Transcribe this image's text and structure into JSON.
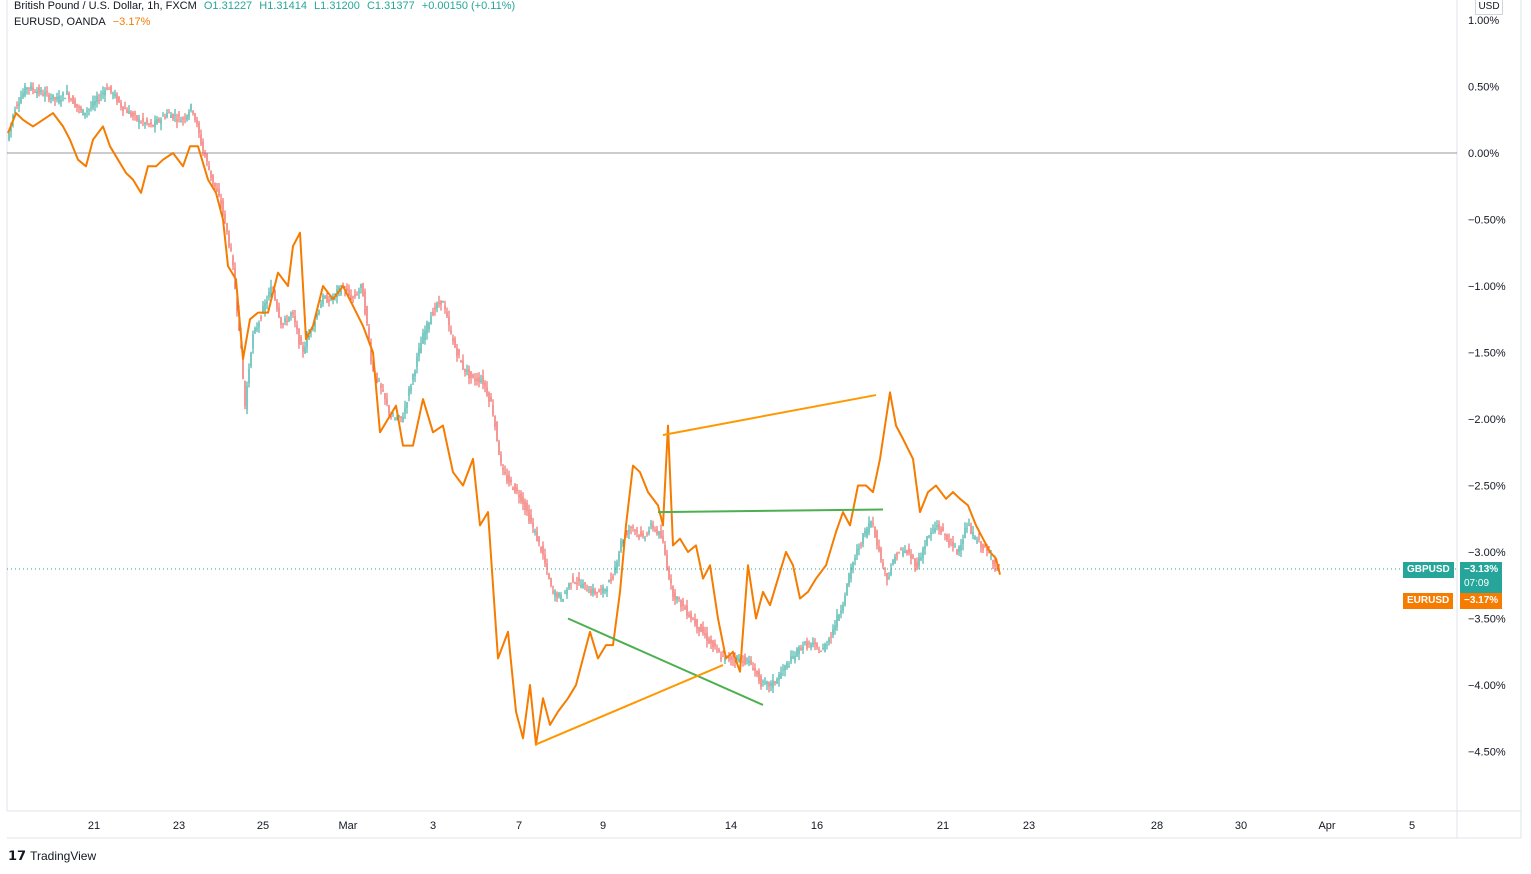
{
  "legend": {
    "main": {
      "symbol": "British Pound / U.S. Dollar, 1h, FXCM",
      "open": "O1.31227",
      "high": "H1.31414",
      "low": "L1.31200",
      "close": "C1.31377",
      "change": "+0.00150 (+0.11%)"
    },
    "compare": {
      "symbol": "EURUSD, OANDA",
      "change": "−3.17%"
    }
  },
  "axis_unit": "USD",
  "badges": {
    "gbpusd_label": "GBPUSD",
    "gbpusd_value": "−3.13%",
    "countdown": "07:09",
    "eurusd_label": "EURUSD",
    "eurusd_value": "−3.17%"
  },
  "brand": "TradingView",
  "colors": {
    "gbpusd_up": "#26a69a",
    "gbpusd_down": "#ef5350",
    "eurusd_line": "#f57c00",
    "trend_green": "#4caf50",
    "trend_orange": "#ff9800"
  },
  "chart_data": {
    "type": "line",
    "y_unit": "%",
    "ylim": [
      -5.0,
      1.1
    ],
    "y_ticks": [
      "1.00%",
      "0.50%",
      "0.00%",
      "−0.50%",
      "−1.00%",
      "−1.50%",
      "−2.00%",
      "−2.50%",
      "−3.00%",
      "−3.50%",
      "−4.00%",
      "−4.50%"
    ],
    "y_tick_values": [
      1.0,
      0.5,
      0.0,
      -0.5,
      -1.0,
      -1.5,
      -2.0,
      -2.5,
      -3.0,
      -3.5,
      -4.0,
      -4.5
    ],
    "x_ticks": [
      "21",
      "23",
      "25",
      "Mar",
      "3",
      "7",
      "9",
      "14",
      "16",
      "21",
      "23",
      "28",
      "30",
      "Apr",
      "5"
    ],
    "grid": false,
    "series": [
      {
        "name": "GBPUSD",
        "style": "candles",
        "last_value": -3.13,
        "values": [
          [
            0,
            0.1
          ],
          [
            8,
            0.35
          ],
          [
            20,
            0.5
          ],
          [
            35,
            0.45
          ],
          [
            50,
            0.4
          ],
          [
            60,
            0.45
          ],
          [
            75,
            0.3
          ],
          [
            85,
            0.35
          ],
          [
            100,
            0.5
          ],
          [
            115,
            0.35
          ],
          [
            130,
            0.25
          ],
          [
            145,
            0.2
          ],
          [
            160,
            0.3
          ],
          [
            175,
            0.25
          ],
          [
            185,
            0.35
          ],
          [
            195,
            0.05
          ],
          [
            205,
            -0.2
          ],
          [
            215,
            -0.4
          ],
          [
            225,
            -0.8
          ],
          [
            232,
            -1.3
          ],
          [
            238,
            -1.9
          ],
          [
            245,
            -1.4
          ],
          [
            255,
            -1.2
          ],
          [
            265,
            -1.0
          ],
          [
            275,
            -1.3
          ],
          [
            285,
            -1.2
          ],
          [
            295,
            -1.5
          ],
          [
            305,
            -1.3
          ],
          [
            315,
            -1.1
          ],
          [
            325,
            -1.1
          ],
          [
            335,
            -1.0
          ],
          [
            345,
            -1.1
          ],
          [
            355,
            -1.0
          ],
          [
            365,
            -1.6
          ],
          [
            375,
            -1.8
          ],
          [
            385,
            -2.0
          ],
          [
            395,
            -2.0
          ],
          [
            405,
            -1.7
          ],
          [
            415,
            -1.4
          ],
          [
            425,
            -1.2
          ],
          [
            435,
            -1.1
          ],
          [
            445,
            -1.4
          ],
          [
            455,
            -1.6
          ],
          [
            465,
            -1.7
          ],
          [
            475,
            -1.7
          ],
          [
            485,
            -1.9
          ],
          [
            495,
            -2.4
          ],
          [
            505,
            -2.5
          ],
          [
            515,
            -2.6
          ],
          [
            525,
            -2.8
          ],
          [
            535,
            -3.0
          ],
          [
            545,
            -3.3
          ],
          [
            555,
            -3.35
          ],
          [
            565,
            -3.2
          ],
          [
            575,
            -3.25
          ],
          [
            585,
            -3.3
          ],
          [
            595,
            -3.3
          ],
          [
            605,
            -3.2
          ],
          [
            615,
            -2.9
          ],
          [
            625,
            -2.8
          ],
          [
            635,
            -2.9
          ],
          [
            645,
            -2.8
          ],
          [
            655,
            -2.9
          ],
          [
            665,
            -3.3
          ],
          [
            675,
            -3.4
          ],
          [
            685,
            -3.5
          ],
          [
            695,
            -3.6
          ],
          [
            705,
            -3.7
          ],
          [
            715,
            -3.8
          ],
          [
            725,
            -3.8
          ],
          [
            735,
            -3.8
          ],
          [
            745,
            -3.85
          ],
          [
            755,
            -4.0
          ],
          [
            765,
            -4.0
          ],
          [
            775,
            -3.9
          ],
          [
            785,
            -3.8
          ],
          [
            795,
            -3.7
          ],
          [
            805,
            -3.7
          ],
          [
            815,
            -3.75
          ],
          [
            825,
            -3.6
          ],
          [
            835,
            -3.4
          ],
          [
            845,
            -3.1
          ],
          [
            855,
            -2.9
          ],
          [
            865,
            -2.75
          ],
          [
            872,
            -3.0
          ],
          [
            880,
            -3.2
          ],
          [
            890,
            -3.0
          ],
          [
            900,
            -3.0
          ],
          [
            910,
            -3.1
          ],
          [
            920,
            -2.9
          ],
          [
            930,
            -2.8
          ],
          [
            940,
            -2.9
          ],
          [
            950,
            -3.0
          ],
          [
            960,
            -2.8
          ],
          [
            968,
            -2.9
          ],
          [
            975,
            -2.95
          ],
          [
            985,
            -3.05
          ],
          [
            992,
            -3.13
          ]
        ]
      },
      {
        "name": "EURUSD",
        "style": "line",
        "last_value": -3.17,
        "values": [
          [
            0,
            0.15
          ],
          [
            8,
            0.3
          ],
          [
            15,
            0.25
          ],
          [
            25,
            0.2
          ],
          [
            35,
            0.25
          ],
          [
            45,
            0.3
          ],
          [
            55,
            0.2
          ],
          [
            62,
            0.1
          ],
          [
            70,
            -0.05
          ],
          [
            78,
            -0.1
          ],
          [
            85,
            0.1
          ],
          [
            95,
            0.2
          ],
          [
            102,
            0.05
          ],
          [
            110,
            -0.05
          ],
          [
            118,
            -0.15
          ],
          [
            125,
            -0.2
          ],
          [
            133,
            -0.3
          ],
          [
            140,
            -0.1
          ],
          [
            148,
            -0.1
          ],
          [
            155,
            -0.05
          ],
          [
            165,
            0.0
          ],
          [
            175,
            -0.1
          ],
          [
            182,
            0.05
          ],
          [
            190,
            0.05
          ],
          [
            200,
            -0.2
          ],
          [
            208,
            -0.3
          ],
          [
            215,
            -0.5
          ],
          [
            220,
            -0.85
          ],
          [
            228,
            -0.95
          ],
          [
            235,
            -1.55
          ],
          [
            242,
            -1.25
          ],
          [
            250,
            -1.2
          ],
          [
            260,
            -1.2
          ],
          [
            270,
            -0.9
          ],
          [
            280,
            -1.0
          ],
          [
            285,
            -0.7
          ],
          [
            292,
            -0.6
          ],
          [
            298,
            -1.4
          ],
          [
            305,
            -1.3
          ],
          [
            315,
            -1.0
          ],
          [
            325,
            -1.1
          ],
          [
            335,
            -1.0
          ],
          [
            345,
            -1.15
          ],
          [
            355,
            -1.3
          ],
          [
            365,
            -1.5
          ],
          [
            372,
            -2.1
          ],
          [
            380,
            -2.0
          ],
          [
            388,
            -1.9
          ],
          [
            395,
            -2.2
          ],
          [
            405,
            -2.2
          ],
          [
            415,
            -1.85
          ],
          [
            425,
            -2.1
          ],
          [
            435,
            -2.05
          ],
          [
            445,
            -2.4
          ],
          [
            455,
            -2.5
          ],
          [
            465,
            -2.3
          ],
          [
            472,
            -2.8
          ],
          [
            480,
            -2.7
          ],
          [
            490,
            -3.8
          ],
          [
            500,
            -3.6
          ],
          [
            508,
            -4.2
          ],
          [
            515,
            -4.4
          ],
          [
            522,
            -4.0
          ],
          [
            528,
            -4.45
          ],
          [
            535,
            -4.1
          ],
          [
            542,
            -4.3
          ],
          [
            550,
            -4.2
          ],
          [
            560,
            -4.1
          ],
          [
            568,
            -4.0
          ],
          [
            575,
            -3.8
          ],
          [
            582,
            -3.6
          ],
          [
            590,
            -3.8
          ],
          [
            598,
            -3.7
          ],
          [
            605,
            -3.7
          ],
          [
            612,
            -3.3
          ],
          [
            618,
            -2.8
          ],
          [
            625,
            -2.35
          ],
          [
            632,
            -2.4
          ],
          [
            640,
            -2.55
          ],
          [
            650,
            -2.65
          ],
          [
            655,
            -2.8
          ],
          [
            660,
            -2.05
          ],
          [
            665,
            -2.95
          ],
          [
            672,
            -2.9
          ],
          [
            680,
            -3.0
          ],
          [
            688,
            -2.95
          ],
          [
            695,
            -3.2
          ],
          [
            702,
            -3.1
          ],
          [
            710,
            -3.5
          ],
          [
            718,
            -3.8
          ],
          [
            725,
            -3.75
          ],
          [
            732,
            -3.9
          ],
          [
            740,
            -3.1
          ],
          [
            748,
            -3.5
          ],
          [
            755,
            -3.3
          ],
          [
            762,
            -3.4
          ],
          [
            770,
            -3.2
          ],
          [
            778,
            -3.0
          ],
          [
            785,
            -3.1
          ],
          [
            792,
            -3.35
          ],
          [
            800,
            -3.3
          ],
          [
            808,
            -3.2
          ],
          [
            818,
            -3.1
          ],
          [
            828,
            -2.85
          ],
          [
            835,
            -2.7
          ],
          [
            842,
            -2.8
          ],
          [
            850,
            -2.5
          ],
          [
            858,
            -2.5
          ],
          [
            865,
            -2.55
          ],
          [
            872,
            -2.3
          ],
          [
            878,
            -2.0
          ],
          [
            882,
            -1.8
          ],
          [
            888,
            -2.05
          ],
          [
            895,
            -2.15
          ],
          [
            905,
            -2.3
          ],
          [
            912,
            -2.7
          ],
          [
            920,
            -2.55
          ],
          [
            928,
            -2.5
          ],
          [
            938,
            -2.6
          ],
          [
            945,
            -2.55
          ],
          [
            952,
            -2.6
          ],
          [
            960,
            -2.65
          ],
          [
            968,
            -2.8
          ],
          [
            975,
            -2.9
          ],
          [
            982,
            -3.0
          ],
          [
            988,
            -3.05
          ],
          [
            992,
            -3.17
          ]
        ]
      }
    ],
    "drawings": [
      {
        "color": "green",
        "from": [
          560,
          -3.5
        ],
        "to": [
          755,
          -4.15
        ]
      },
      {
        "color": "green",
        "from": [
          650,
          -2.7
        ],
        "to": [
          875,
          -2.68
        ]
      },
      {
        "color": "orange",
        "from": [
          527,
          -4.45
        ],
        "to": [
          715,
          -3.85
        ]
      },
      {
        "color": "orange",
        "from": [
          655,
          -2.12
        ],
        "to": [
          868,
          -1.82
        ]
      }
    ]
  }
}
